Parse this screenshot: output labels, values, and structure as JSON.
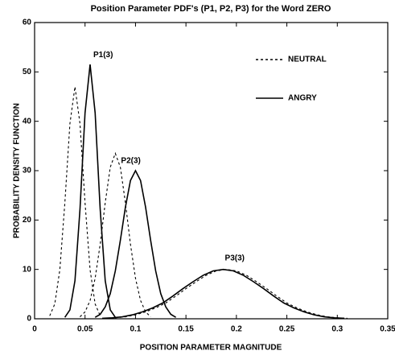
{
  "chart_data": {
    "type": "line",
    "title": "Position Parameter PDF's (P1, P2, P3) for the Word ZERO",
    "xlabel": "POSITION PARAMETER MAGNITUDE",
    "ylabel": "PROBABILITY DENSITY FUNCTION",
    "xlim": [
      0,
      0.35
    ],
    "xticks": [
      0,
      0.05,
      0.1,
      0.15,
      0.2,
      0.25,
      0.3,
      0.35
    ],
    "ylim": [
      0,
      60
    ],
    "yticks": [
      0,
      10,
      20,
      30,
      40,
      50,
      60
    ],
    "annotations": [
      "P1(3)",
      "P2(3)",
      "P3(3)"
    ],
    "series": [
      {
        "name": "NEUTRAL",
        "color": "#000000",
        "style": "dashed",
        "curves": [
          {
            "x": [
              0.015,
              0.02,
              0.025,
              0.03,
              0.035,
              0.04,
              0.045,
              0.05,
              0.055,
              0.06,
              0.065
            ],
            "values": [
              0.6,
              3.0,
              9.9,
              23.5,
              39.5,
              47,
              39.5,
              23.5,
              9.9,
              3.0,
              0.6
            ]
          },
          {
            "x": [
              0.045,
              0.05,
              0.055,
              0.06,
              0.065,
              0.07,
              0.075,
              0.08,
              0.085,
              0.09,
              0.095,
              0.1,
              0.105,
              0.11,
              0.115
            ],
            "values": [
              0.4,
              1.4,
              3.7,
              8.2,
              15.1,
              23.5,
              30.7,
              33.5,
              30.7,
              23.5,
              15.1,
              8.2,
              3.7,
              1.4,
              0.4
            ]
          },
          {
            "x": [
              0.07,
              0.08,
              0.09,
              0.1,
              0.11,
              0.12,
              0.13,
              0.14,
              0.15,
              0.16,
              0.17,
              0.18,
              0.19,
              0.2,
              0.21,
              0.22,
              0.23,
              0.24,
              0.25,
              0.26,
              0.27,
              0.28,
              0.29,
              0.3,
              0.31
            ],
            "values": [
              0.1,
              0.2,
              0.4,
              0.8,
              1.4,
              2.2,
              3.2,
              4.6,
              6.1,
              7.5,
              8.8,
              9.7,
              10,
              9.7,
              8.8,
              7.5,
              6.1,
              4.6,
              3.2,
              2.2,
              1.4,
              0.8,
              0.4,
              0.2,
              0.1
            ]
          }
        ]
      },
      {
        "name": "ANGRY",
        "color": "#000000",
        "style": "solid",
        "curves": [
          {
            "x": [
              0.03,
              0.035,
              0.04,
              0.045,
              0.05,
              0.055,
              0.06,
              0.065,
              0.07,
              0.075,
              0.08
            ],
            "values": [
              0.3,
              1.8,
              7.7,
              22.2,
              41.7,
              51.5,
              41.7,
              22.2,
              7.7,
              1.8,
              0.3
            ]
          },
          {
            "x": [
              0.06,
              0.065,
              0.07,
              0.075,
              0.08,
              0.085,
              0.09,
              0.095,
              0.1,
              0.105,
              0.11,
              0.115,
              0.12,
              0.125,
              0.13,
              0.135,
              0.14
            ],
            "values": [
              0.3,
              0.9,
              2.4,
              5.1,
              9.7,
              15.9,
              22.6,
              28.0,
              30,
              28.0,
              22.6,
              15.9,
              9.7,
              5.1,
              2.4,
              0.9,
              0.3
            ]
          },
          {
            "x": [
              0.067,
              0.077,
              0.087,
              0.097,
              0.107,
              0.117,
              0.127,
              0.137,
              0.147,
              0.157,
              0.167,
              0.177,
              0.187,
              0.197,
              0.207,
              0.217,
              0.227,
              0.237,
              0.247,
              0.257,
              0.267,
              0.277,
              0.287,
              0.297,
              0.307
            ],
            "values": [
              0.1,
              0.2,
              0.4,
              0.8,
              1.4,
              2.2,
              3.2,
              4.6,
              6.1,
              7.5,
              8.8,
              9.7,
              10,
              9.7,
              8.8,
              7.5,
              6.1,
              4.6,
              3.2,
              2.2,
              1.4,
              0.8,
              0.4,
              0.2,
              0.1
            ]
          }
        ]
      }
    ]
  }
}
